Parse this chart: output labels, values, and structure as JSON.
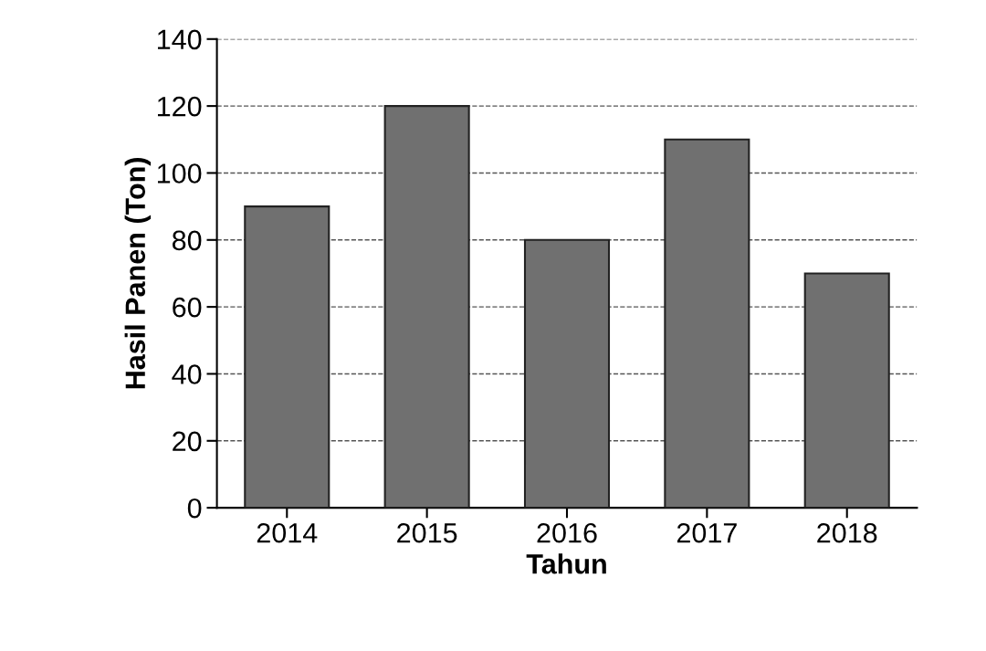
{
  "chart_data": {
    "type": "bar",
    "xlabel": "Tahun",
    "ylabel": "Hasil Panen (Ton)",
    "categories": [
      "2014",
      "2015",
      "2016",
      "2017",
      "2018"
    ],
    "values": [
      90,
      120,
      80,
      110,
      70
    ],
    "color": "#707070",
    "ylim": [
      0,
      140
    ],
    "yticks": [
      0,
      20,
      40,
      60,
      80,
      100,
      120,
      140
    ],
    "grid": "y"
  }
}
